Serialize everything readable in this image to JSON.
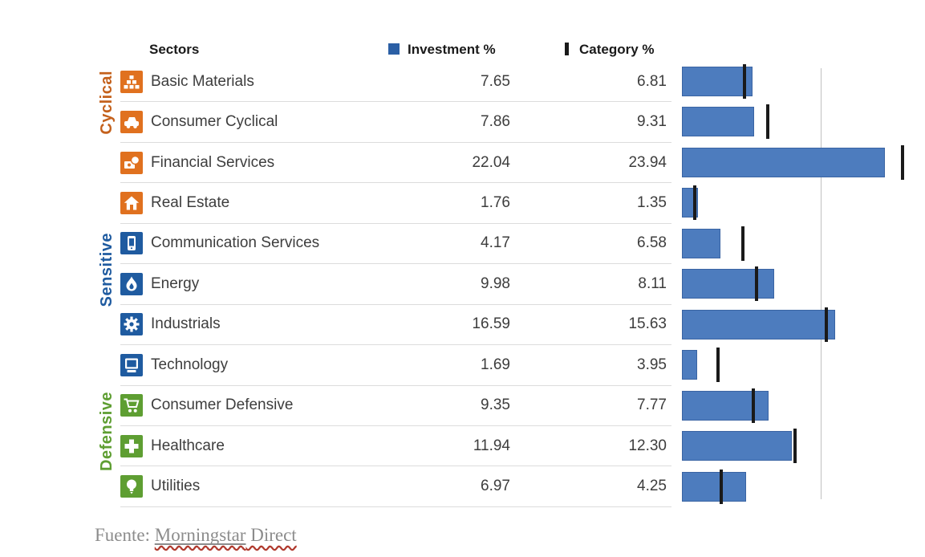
{
  "header": {
    "sectors_label": "Sectors",
    "investment_label": "Investment %",
    "category_label": "Category %"
  },
  "groups": [
    {
      "id": "cyclical",
      "label": "Cyclical"
    },
    {
      "id": "sensitive",
      "label": "Sensitive"
    },
    {
      "id": "defensive",
      "label": "Defensive"
    }
  ],
  "rows": [
    {
      "name": "Basic Materials",
      "group": "cyclical",
      "icon": "cubes",
      "investment": "7.65",
      "category": "6.81"
    },
    {
      "name": "Consumer Cyclical",
      "group": "cyclical",
      "icon": "car",
      "investment": "7.86",
      "category": "9.31"
    },
    {
      "name": "Financial Services",
      "group": "cyclical",
      "icon": "bank-money",
      "investment": "22.04",
      "category": "23.94"
    },
    {
      "name": "Real Estate",
      "group": "cyclical",
      "icon": "house",
      "investment": "1.76",
      "category": "1.35"
    },
    {
      "name": "Communication Services",
      "group": "sensitive",
      "icon": "phone",
      "investment": "4.17",
      "category": "6.58"
    },
    {
      "name": "Energy",
      "group": "sensitive",
      "icon": "flame",
      "investment": "9.98",
      "category": "8.11"
    },
    {
      "name": "Industrials",
      "group": "sensitive",
      "icon": "gear",
      "investment": "16.59",
      "category": "15.63"
    },
    {
      "name": "Technology",
      "group": "sensitive",
      "icon": "computer",
      "investment": "1.69",
      "category": "3.95"
    },
    {
      "name": "Consumer Defensive",
      "group": "defensive",
      "icon": "shopping-cart",
      "investment": "9.35",
      "category": "7.77"
    },
    {
      "name": "Healthcare",
      "group": "defensive",
      "icon": "medical-cross",
      "investment": "11.94",
      "category": "12.30"
    },
    {
      "name": "Utilities",
      "group": "defensive",
      "icon": "light-bulb",
      "investment": "6.97",
      "category": "4.25"
    }
  ],
  "footer": {
    "source_prefix": "Fuente: ",
    "source_name": "Morningstar",
    "source_suffix": " Direct"
  },
  "colors": {
    "cyclical": "#e0711f",
    "sensitive": "#1f5ba0",
    "defensive": "#5e9e32",
    "label-cyclical": "#c4611c",
    "label-sensitive": "#1f5ba0",
    "label-defensive": "#5e9e32",
    "bar": "#4d7cbe",
    "bar-border": "#3a64a3",
    "tick": "#1a1a1a",
    "gridline": "#c0c0c0",
    "legend-square": "#2b5fa5"
  },
  "chart_data": {
    "type": "bar",
    "orientation": "horizontal",
    "categories": [
      "Basic Materials",
      "Consumer Cyclical",
      "Financial Services",
      "Real Estate",
      "Communication Services",
      "Energy",
      "Industrials",
      "Technology",
      "Consumer Defensive",
      "Healthcare",
      "Utilities"
    ],
    "series": [
      {
        "name": "Investment %",
        "style": "bar",
        "values": [
          7.65,
          7.86,
          22.04,
          1.76,
          4.17,
          9.98,
          16.59,
          1.69,
          9.35,
          11.94,
          6.97
        ]
      },
      {
        "name": "Category %",
        "style": "tick",
        "values": [
          6.81,
          9.31,
          23.94,
          1.35,
          6.58,
          8.11,
          15.63,
          3.95,
          7.77,
          12.3,
          4.25
        ]
      }
    ],
    "xlim": [
      0,
      30
    ],
    "gridline_x": 15,
    "grid": true,
    "legend_position": "top",
    "title": "",
    "xlabel": "",
    "ylabel": ""
  }
}
